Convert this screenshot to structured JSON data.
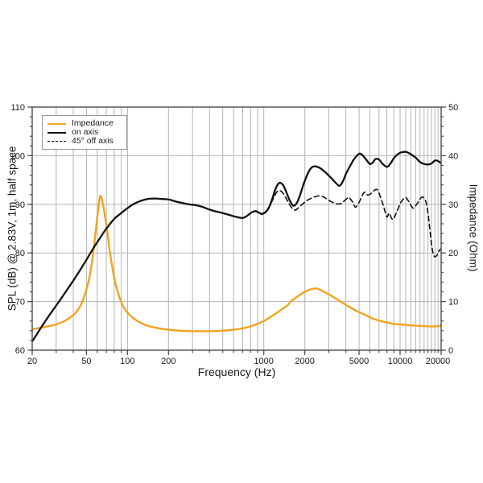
{
  "chart_data": {
    "type": "line",
    "title": "",
    "xlabel": "Frequency (Hz)",
    "ylabel_left": "SPL (dB) @ 2.83V, 1m, half space",
    "ylabel_right": "Impedance (Ohm)",
    "x_scale": "log",
    "xlim": [
      20,
      20000
    ],
    "ylim_left": [
      60,
      110
    ],
    "ylim_right": [
      0,
      50
    ],
    "x_labeled_ticks": [
      20,
      50,
      100,
      200,
      1000,
      2000,
      5000,
      10000,
      20000
    ],
    "x_labeled_tick_text": [
      "20",
      "50",
      "100",
      "200",
      "1000",
      "2000",
      "5000",
      "10000",
      "20000"
    ],
    "x_minor_ticks": [
      30,
      40,
      60,
      70,
      80,
      90,
      300,
      400,
      500,
      600,
      700,
      800,
      900,
      3000,
      4000,
      6000,
      7000,
      8000,
      9000,
      11000,
      12000,
      13000,
      14000,
      15000,
      16000,
      17000,
      18000,
      19000
    ],
    "y_left_major_ticks": [
      60,
      70,
      80,
      90,
      100,
      110
    ],
    "y_left_tick_text": [
      "60",
      "70",
      "80",
      "90",
      "100",
      "110"
    ],
    "y_right_major_ticks": [
      0,
      10,
      20,
      30,
      40,
      50
    ],
    "y_right_tick_text": [
      "0",
      "10",
      "20",
      "30",
      "40",
      "50"
    ],
    "y_minor_step": 2,
    "grid": {
      "horizontal_at": [
        70,
        80,
        90,
        100
      ],
      "vertical_at_all_ticks": true
    },
    "legend": {
      "position": "top-left",
      "items": [
        {
          "label": "Impedance",
          "color": "#F2A31D",
          "style": "solid"
        },
        {
          "label": "on axis",
          "color": "#111111",
          "style": "solid"
        },
        {
          "label": "45° off axis",
          "color": "#111111",
          "style": "dashed"
        }
      ]
    },
    "series": [
      {
        "name": "Impedance",
        "axis": "right",
        "unit": "Ohm",
        "color": "#F2A31D",
        "style": "solid",
        "width": 2.4,
        "points": [
          [
            20,
            4.3
          ],
          [
            23,
            4.6
          ],
          [
            26,
            4.9
          ],
          [
            30,
            5.3
          ],
          [
            34,
            5.9
          ],
          [
            38,
            6.7
          ],
          [
            42,
            7.8
          ],
          [
            46,
            9.6
          ],
          [
            50,
            12.5
          ],
          [
            53,
            15.5
          ],
          [
            56,
            20
          ],
          [
            59,
            25.5
          ],
          [
            61,
            29
          ],
          [
            63,
            31.6
          ],
          [
            65,
            31
          ],
          [
            68,
            28
          ],
          [
            71,
            24.5
          ],
          [
            74,
            20.5
          ],
          [
            78,
            16.5
          ],
          [
            82,
            13.5
          ],
          [
            87,
            11
          ],
          [
            93,
            9
          ],
          [
            100,
            7.7
          ],
          [
            110,
            6.6
          ],
          [
            120,
            5.9
          ],
          [
            135,
            5.2
          ],
          [
            150,
            4.8
          ],
          [
            170,
            4.5
          ],
          [
            200,
            4.2
          ],
          [
            240,
            4.0
          ],
          [
            300,
            3.9
          ],
          [
            400,
            3.9
          ],
          [
            500,
            4.0
          ],
          [
            600,
            4.2
          ],
          [
            700,
            4.5
          ],
          [
            800,
            4.9
          ],
          [
            900,
            5.4
          ],
          [
            1000,
            6.0
          ],
          [
            1100,
            6.7
          ],
          [
            1250,
            7.7
          ],
          [
            1400,
            8.7
          ],
          [
            1500,
            9.3
          ],
          [
            1600,
            10.2
          ],
          [
            1800,
            11.2
          ],
          [
            2000,
            12.0
          ],
          [
            2200,
            12.5
          ],
          [
            2400,
            12.7
          ],
          [
            2600,
            12.4
          ],
          [
            2900,
            11.7
          ],
          [
            3300,
            10.8
          ],
          [
            3800,
            9.7
          ],
          [
            4300,
            8.8
          ],
          [
            5000,
            7.8
          ],
          [
            5600,
            7.2
          ],
          [
            6300,
            6.5
          ],
          [
            7000,
            6.1
          ],
          [
            8000,
            5.7
          ],
          [
            9000,
            5.4
          ],
          [
            10000,
            5.3
          ],
          [
            12000,
            5.1
          ],
          [
            14000,
            5.0
          ],
          [
            16000,
            4.9
          ],
          [
            18000,
            4.9
          ],
          [
            20000,
            5.0
          ]
        ]
      },
      {
        "name": "on axis",
        "axis": "left",
        "unit": "dB",
        "color": "#111111",
        "style": "solid",
        "width": 2.3,
        "points": [
          [
            20,
            61.8
          ],
          [
            22,
            63.6
          ],
          [
            25,
            66.0
          ],
          [
            28,
            68.0
          ],
          [
            32,
            70.3
          ],
          [
            36,
            72.4
          ],
          [
            40,
            74.3
          ],
          [
            45,
            76.5
          ],
          [
            50,
            78.6
          ],
          [
            56,
            80.9
          ],
          [
            63,
            83.1
          ],
          [
            70,
            85.0
          ],
          [
            80,
            87.0
          ],
          [
            90,
            88.2
          ],
          [
            100,
            89.2
          ],
          [
            110,
            90.0
          ],
          [
            125,
            90.7
          ],
          [
            140,
            91.1
          ],
          [
            160,
            91.2
          ],
          [
            180,
            91.1
          ],
          [
            200,
            91.0
          ],
          [
            225,
            90.6
          ],
          [
            250,
            90.3
          ],
          [
            280,
            90.0
          ],
          [
            320,
            89.8
          ],
          [
            360,
            89.4
          ],
          [
            400,
            88.9
          ],
          [
            450,
            88.5
          ],
          [
            500,
            88.2
          ],
          [
            560,
            87.8
          ],
          [
            630,
            87.4
          ],
          [
            700,
            87.2
          ],
          [
            760,
            87.7
          ],
          [
            820,
            88.4
          ],
          [
            870,
            88.6
          ],
          [
            920,
            88.3
          ],
          [
            970,
            88.0
          ],
          [
            1030,
            88.4
          ],
          [
            1090,
            89.3
          ],
          [
            1150,
            91.0
          ],
          [
            1220,
            93.2
          ],
          [
            1300,
            94.4
          ],
          [
            1380,
            94.0
          ],
          [
            1450,
            92.8
          ],
          [
            1550,
            90.8
          ],
          [
            1650,
            89.7
          ],
          [
            1750,
            90.3
          ],
          [
            1850,
            92.0
          ],
          [
            1950,
            94.0
          ],
          [
            2100,
            96.3
          ],
          [
            2250,
            97.6
          ],
          [
            2400,
            97.8
          ],
          [
            2600,
            97.4
          ],
          [
            2800,
            96.7
          ],
          [
            3000,
            95.9
          ],
          [
            3200,
            95.1
          ],
          [
            3400,
            94.3
          ],
          [
            3600,
            93.8
          ],
          [
            3800,
            94.7
          ],
          [
            4000,
            96.2
          ],
          [
            4300,
            97.9
          ],
          [
            4600,
            99.3
          ],
          [
            5000,
            100.4
          ],
          [
            5300,
            100.1
          ],
          [
            5600,
            99.3
          ],
          [
            6000,
            98.3
          ],
          [
            6300,
            98.6
          ],
          [
            6600,
            99.3
          ],
          [
            7000,
            99.2
          ],
          [
            7400,
            98.4
          ],
          [
            8000,
            97.7
          ],
          [
            8500,
            98.4
          ],
          [
            9000,
            99.5
          ],
          [
            9500,
            100.2
          ],
          [
            10000,
            100.6
          ],
          [
            11000,
            100.8
          ],
          [
            12000,
            100.3
          ],
          [
            13000,
            99.6
          ],
          [
            14000,
            98.7
          ],
          [
            15000,
            98.3
          ],
          [
            16000,
            98.2
          ],
          [
            17000,
            98.4
          ],
          [
            18000,
            99.0
          ],
          [
            19000,
            98.9
          ],
          [
            20000,
            98.4
          ]
        ]
      },
      {
        "name": "45° off axis",
        "axis": "left",
        "unit": "dB",
        "color": "#111111",
        "style": "dashed",
        "width": 1.6,
        "points": [
          [
            950,
            88.0
          ],
          [
            1030,
            88.5
          ],
          [
            1100,
            89.6
          ],
          [
            1180,
            91.3
          ],
          [
            1250,
            92.6
          ],
          [
            1320,
            92.8
          ],
          [
            1400,
            92.1
          ],
          [
            1500,
            90.6
          ],
          [
            1600,
            89.3
          ],
          [
            1700,
            88.8
          ],
          [
            1800,
            89.3
          ],
          [
            1950,
            90.2
          ],
          [
            2100,
            90.9
          ],
          [
            2300,
            91.4
          ],
          [
            2500,
            91.7
          ],
          [
            2700,
            91.6
          ],
          [
            2900,
            91.1
          ],
          [
            3100,
            90.6
          ],
          [
            3400,
            90.1
          ],
          [
            3700,
            90.2
          ],
          [
            4000,
            91.0
          ],
          [
            4200,
            91.4
          ],
          [
            4500,
            90.4
          ],
          [
            4700,
            89.4
          ],
          [
            5000,
            90.4
          ],
          [
            5300,
            91.9
          ],
          [
            5500,
            92.5
          ],
          [
            5800,
            91.9
          ],
          [
            6100,
            92.2
          ],
          [
            6500,
            92.9
          ],
          [
            6800,
            93.0
          ],
          [
            7200,
            91.4
          ],
          [
            7600,
            89.4
          ],
          [
            8000,
            87.4
          ],
          [
            8300,
            88.2
          ],
          [
            8600,
            87.3
          ],
          [
            8900,
            86.9
          ],
          [
            9400,
            88.3
          ],
          [
            10000,
            90.1
          ],
          [
            10500,
            91.0
          ],
          [
            11000,
            91.4
          ],
          [
            11500,
            90.7
          ],
          [
            12000,
            89.8
          ],
          [
            12500,
            89.2
          ],
          [
            13000,
            89.7
          ],
          [
            13700,
            90.6
          ],
          [
            14300,
            91.4
          ],
          [
            15000,
            91.3
          ],
          [
            15500,
            90.4
          ],
          [
            16000,
            88.3
          ],
          [
            16500,
            85.0
          ],
          [
            17000,
            81.8
          ],
          [
            17500,
            79.8
          ],
          [
            18000,
            79.2
          ],
          [
            18700,
            79.6
          ],
          [
            19300,
            80.4
          ],
          [
            20000,
            80.9
          ]
        ]
      }
    ],
    "annotations": {
      "impedance_peak": {
        "frequency_hz": 63,
        "impedance_ohm": 31.6
      },
      "impedance_minimum_ohm": 3.9,
      "hf_peak": {
        "frequency_hz": 5000,
        "spl_db": 100.4
      }
    }
  },
  "colors": {
    "impedance_orange": "#F2A31D",
    "trace_black": "#111111",
    "grid": "#b3b3b3",
    "frame": "#4d4d4d",
    "background": "#ffffff",
    "legend_border": "#999999",
    "text": "#1a1a1a"
  }
}
